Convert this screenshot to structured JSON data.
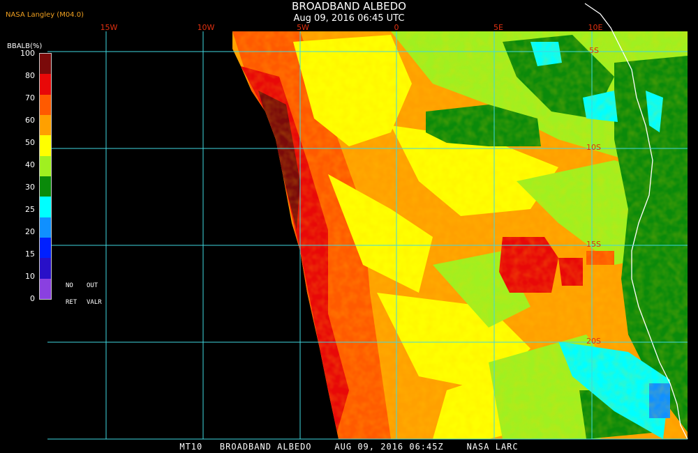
{
  "header": {
    "title": "BROADBAND ALBEDO",
    "subtitle": "Aug 09, 2016 06:45 UTC",
    "credit": "NASA Langley (M04.0)"
  },
  "longitude_labels": [
    "15W",
    "10W",
    "5W",
    "0",
    "5E",
    "10E"
  ],
  "latitude_labels": [
    "5S",
    "10S",
    "15S",
    "20S"
  ],
  "colorbar": {
    "title": "BBALB(%)",
    "ticks": [
      "100",
      "80",
      "70",
      "60",
      "50",
      "40",
      "30",
      "25",
      "20",
      "15",
      "10",
      "0"
    ],
    "colors": [
      "#7a0a0a",
      "#e80808",
      "#ff5a00",
      "#ffa000",
      "#ffff00",
      "#a0f020",
      "#0a8a0a",
      "#00ffff",
      "#1090ff",
      "#0020ff",
      "#2810c8",
      "#8a40e0"
    ]
  },
  "legend_notes": {
    "no": "NO",
    "out": "OUT",
    "ret": "RET",
    "valr": "VALR"
  },
  "footer": "MT10   BROADBAND ALBEDO    AUG 09, 2016 06:45Z    NASA LARC",
  "map": {
    "grid_color": "#40d8e0",
    "background": "#000000",
    "coastline_color": "#ffffff"
  }
}
